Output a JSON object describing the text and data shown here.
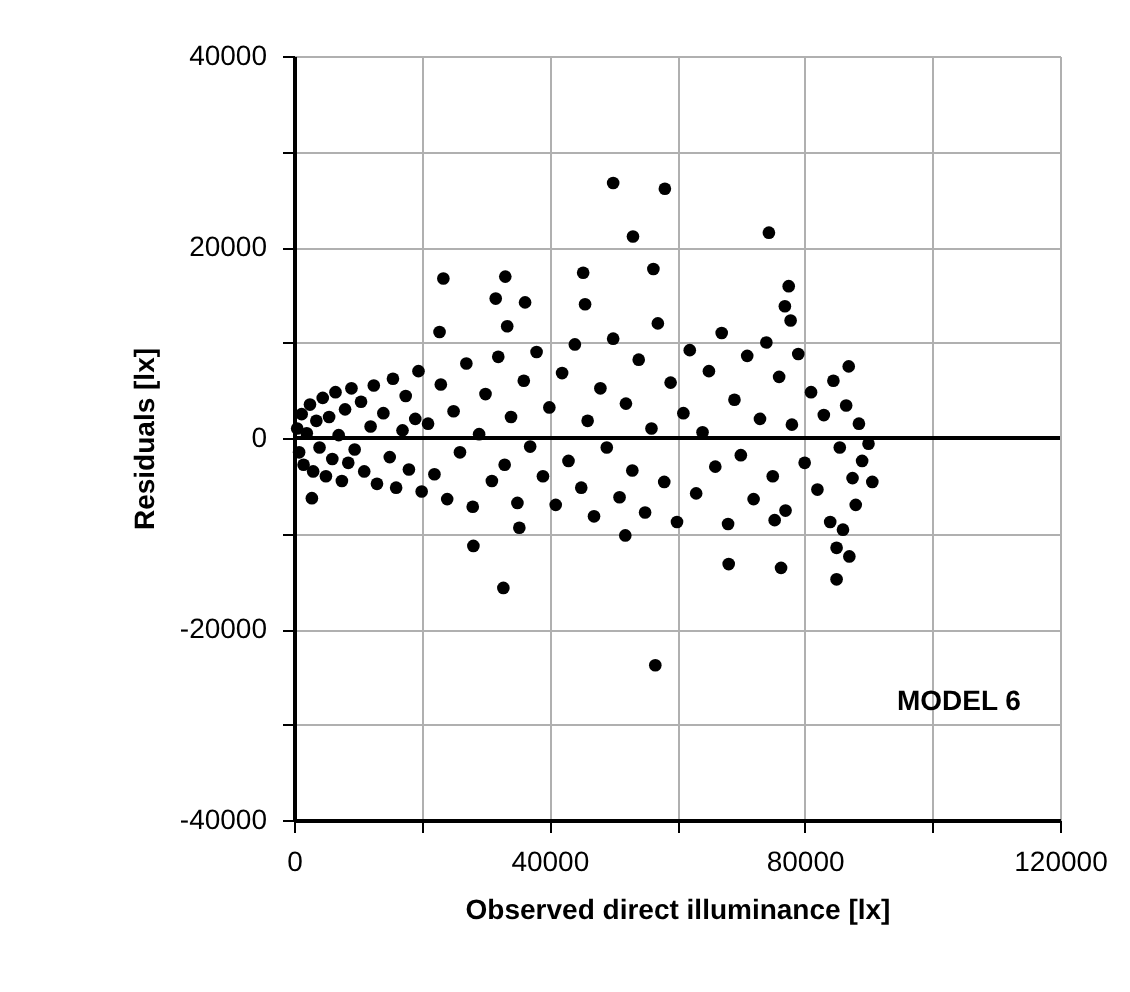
{
  "chart_data": {
    "type": "scatter",
    "xlabel": "Observed direct illuminance [lx]",
    "ylabel": "Residuals [lx]",
    "xlim": [
      0,
      120000
    ],
    "xticks": [
      0,
      {
        "value": 20000,
        "label": null
      },
      40000,
      {
        "value": 60000,
        "label": null
      },
      80000,
      {
        "value": 100000,
        "label": null
      },
      120000
    ],
    "ylim": [
      -40000,
      40000
    ],
    "yticks": [
      -40000,
      {
        "value": -30000,
        "label": null
      },
      -20000,
      {
        "value": -10000,
        "label": null
      },
      0,
      {
        "value": 10000,
        "label": null
      },
      20000,
      {
        "value": 30000,
        "label": null
      },
      40000
    ],
    "grid": true,
    "marker": "circle",
    "legend": false,
    "ref_lines": [
      {
        "axis": "y",
        "value": 0,
        "color": "#000000"
      }
    ],
    "annotations": [
      {
        "text": "MODEL 6"
      }
    ],
    "series": [
      {
        "color": "#000000",
        "x": [
          500,
          800,
          1200,
          1500,
          2000,
          2500,
          3000,
          3500,
          4000,
          4500,
          5000,
          5500,
          6000,
          6500,
          7000,
          7500,
          8000,
          8500,
          9000,
          9500,
          10500,
          11000,
          12000,
          12500,
          13000,
          14000,
          15000,
          15500,
          16000,
          17000,
          17500,
          18000,
          19000,
          19500,
          20000,
          21000,
          22000,
          23000,
          24000,
          25000,
          26000,
          27000,
          28000,
          29000,
          30000,
          31000,
          32000,
          33000,
          34000,
          35000,
          36000,
          37000,
          38000,
          39000,
          40000,
          41000,
          42000,
          43000,
          44000,
          45000,
          46000,
          47000,
          48000,
          49000,
          50000,
          51000,
          52000,
          53000,
          54000,
          55000,
          56000,
          57000,
          58000,
          59000,
          60000,
          61000,
          62000,
          63000,
          64000,
          65000,
          66000,
          67000,
          68000,
          69000,
          70000,
          71000,
          72000,
          73000,
          74000,
          75000,
          76000,
          77000,
          78000,
          79000,
          80000,
          81000,
          82000,
          83000,
          84000,
          84500,
          85000,
          85500,
          86000,
          86500,
          87000,
          87500,
          88000,
          88500,
          89000,
          90000,
          23400,
          22800,
          33100,
          31600,
          36200,
          33400,
          45300,
          45600,
          53100,
          58100,
          50000,
          56300,
          74400,
          77500,
          76900,
          77800,
          86900,
          90600,
          75300,
          68100,
          76300,
          85000,
          28100,
          32800,
          35300,
          51900,
          2800,
          56600
        ],
        "values": [
          1000,
          -1500,
          2500,
          -2800,
          500,
          3500,
          -3500,
          1800,
          -1000,
          4200,
          -4000,
          2200,
          -2200,
          4800,
          300,
          -4500,
          3000,
          -2600,
          5200,
          -1200,
          3800,
          -3500,
          1200,
          5500,
          -4800,
          2600,
          -2000,
          6200,
          -5200,
          800,
          4400,
          -3300,
          2000,
          7000,
          -5600,
          1500,
          -3800,
          5600,
          -6400,
          2800,
          -1500,
          7800,
          -7200,
          400,
          4600,
          -4500,
          8500,
          -2800,
          2200,
          -6800,
          6000,
          -900,
          9000,
          -4000,
          3200,
          -7000,
          6800,
          -2400,
          9800,
          -5200,
          1800,
          -8200,
          5200,
          -1000,
          10400,
          -6200,
          3600,
          -3400,
          8200,
          -7800,
          1000,
          12000,
          -4600,
          5800,
          -8800,
          2600,
          9200,
          -5800,
          600,
          7000,
          -3000,
          11000,
          -9000,
          4000,
          -1800,
          8600,
          -6400,
          2000,
          10000,
          -4000,
          6400,
          -7600,
          1400,
          8800,
          -2600,
          4800,
          -5400,
          2400,
          -8800,
          6000,
          -11500,
          -1000,
          -9600,
          3400,
          -12400,
          -4200,
          -7000,
          1500,
          -2400,
          -600,
          16700,
          11100,
          16900,
          14600,
          14200,
          11700,
          17300,
          14000,
          21100,
          26100,
          26700,
          17700,
          21500,
          15900,
          13800,
          12300,
          7500,
          -4600,
          -8600,
          -13200,
          -13600,
          -14800,
          -11300,
          -15700,
          -9400,
          -10200,
          -6300,
          -23800
        ]
      }
    ]
  }
}
